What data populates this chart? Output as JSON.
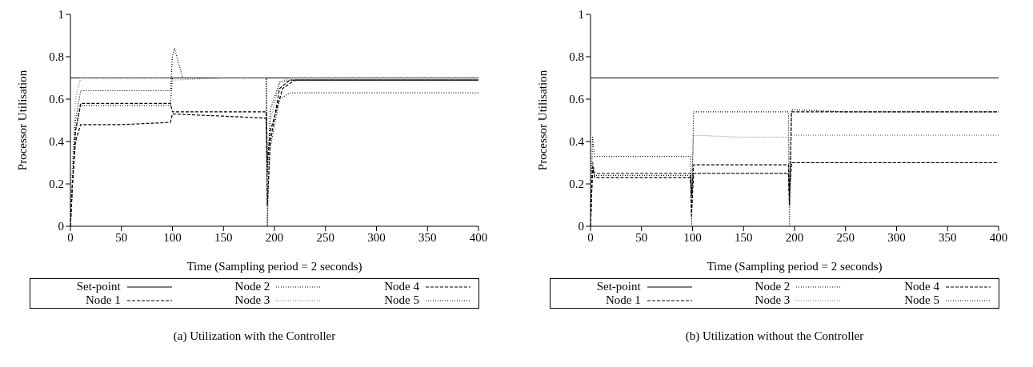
{
  "chart_data": [
    {
      "type": "line",
      "xlabel": "Time (Sampling period = 2 seconds)",
      "ylabel": "Processor Utilisation",
      "xlim": [
        0,
        400
      ],
      "xticks": [
        0,
        50,
        100,
        150,
        200,
        250,
        300,
        350,
        400
      ],
      "ylim": [
        0,
        1
      ],
      "yticks": [
        0,
        0.2,
        0.4,
        0.6,
        0.8,
        1
      ],
      "legend": "bottom",
      "annotations": [
        "(a) Utilization with the Controller"
      ],
      "series": [
        {
          "name": "Set-point",
          "color": "#000000",
          "line_style": "solid",
          "x": [
            0,
            400
          ],
          "values": [
            0.7,
            0.7
          ]
        },
        {
          "name": "Node 1",
          "color": "#000000",
          "line_style": "dashed",
          "x": [
            0,
            2,
            5,
            10,
            50,
            98,
            100,
            150,
            192,
            193,
            196,
            205,
            215,
            300,
            400
          ],
          "values": [
            0,
            0.2,
            0.4,
            0.48,
            0.48,
            0.49,
            0.53,
            0.52,
            0.51,
            0.1,
            0.4,
            0.65,
            0.69,
            0.69,
            0.69
          ]
        },
        {
          "name": "Node 2",
          "color": "#000000",
          "line_style": "dotted",
          "x": [
            0,
            2,
            5,
            10,
            50,
            98,
            100,
            102,
            110,
            150,
            192,
            193,
            195,
            205,
            215,
            300,
            400
          ],
          "values": [
            0,
            0.25,
            0.5,
            0.64,
            0.64,
            0.64,
            0.8,
            0.84,
            0.7,
            0.7,
            0.7,
            0,
            0.35,
            0.6,
            0.63,
            0.63,
            0.63
          ]
        },
        {
          "name": "Node 3",
          "color": "#777777",
          "line_style": "dotted",
          "x": [
            0,
            2,
            5,
            10,
            50,
            98,
            100,
            150,
            192,
            193,
            196,
            205,
            215,
            300,
            400
          ],
          "values": [
            0,
            0.3,
            0.6,
            0.7,
            0.7,
            0.7,
            0.69,
            0.7,
            0.7,
            0.2,
            0.5,
            0.68,
            0.7,
            0.7,
            0.7
          ]
        },
        {
          "name": "Node 4",
          "color": "#000000",
          "line_style": "dashed",
          "x": [
            0,
            2,
            5,
            10,
            50,
            98,
            100,
            150,
            192,
            193,
            196,
            208,
            220,
            300,
            400
          ],
          "values": [
            0,
            0.2,
            0.45,
            0.58,
            0.58,
            0.58,
            0.54,
            0.54,
            0.54,
            0.3,
            0.45,
            0.65,
            0.69,
            0.69,
            0.69
          ]
        },
        {
          "name": "Node 5",
          "color": "#000000",
          "line_style": "dotted",
          "x": [
            0,
            2,
            5,
            10,
            50,
            98,
            100,
            150,
            192,
            193,
            196,
            205,
            215,
            300,
            400
          ],
          "values": [
            0,
            0.2,
            0.45,
            0.57,
            0.57,
            0.57,
            0.7,
            0.7,
            0.7,
            0.25,
            0.55,
            0.68,
            0.69,
            0.69,
            0.69
          ]
        }
      ]
    },
    {
      "type": "line",
      "xlabel": "Time (Sampling period = 2 seconds)",
      "ylabel": "Processor Utilisation",
      "xlim": [
        0,
        400
      ],
      "xticks": [
        0,
        50,
        100,
        150,
        200,
        250,
        300,
        350,
        400
      ],
      "ylim": [
        0,
        1
      ],
      "yticks": [
        0,
        0.2,
        0.4,
        0.6,
        0.8,
        1
      ],
      "legend": "bottom",
      "annotations": [
        "(b) Utilization without the Controller"
      ],
      "series": [
        {
          "name": "Set-point",
          "color": "#000000",
          "line_style": "solid",
          "x": [
            0,
            400
          ],
          "values": [
            0.7,
            0.7
          ]
        },
        {
          "name": "Node 1",
          "color": "#000000",
          "line_style": "dashed",
          "x": [
            0,
            2,
            4,
            50,
            98,
            99,
            101,
            150,
            194,
            195,
            197,
            250,
            400
          ],
          "values": [
            0,
            0.3,
            0.25,
            0.25,
            0.25,
            0.05,
            0.25,
            0.25,
            0.25,
            0.1,
            0.54,
            0.54,
            0.54
          ]
        },
        {
          "name": "Node 2",
          "color": "#000000",
          "line_style": "dotted",
          "x": [
            0,
            2,
            4,
            50,
            98,
            99,
            101,
            150,
            194,
            195,
            197,
            250,
            400
          ],
          "values": [
            0,
            0.42,
            0.33,
            0.33,
            0.33,
            0,
            0.54,
            0.54,
            0.54,
            0,
            0.55,
            0.54,
            0.54
          ]
        },
        {
          "name": "Node 3",
          "color": "#777777",
          "line_style": "dotted",
          "x": [
            0,
            2,
            4,
            50,
            98,
            99,
            101,
            150,
            194,
            195,
            197,
            250,
            400
          ],
          "values": [
            0,
            0.3,
            0.25,
            0.25,
            0.25,
            0.2,
            0.43,
            0.42,
            0.42,
            0.2,
            0.43,
            0.43,
            0.43
          ]
        },
        {
          "name": "Node 4",
          "color": "#000000",
          "line_style": "dashed",
          "x": [
            0,
            2,
            4,
            50,
            98,
            99,
            101,
            150,
            194,
            195,
            197,
            250,
            400
          ],
          "values": [
            0,
            0.28,
            0.23,
            0.23,
            0.23,
            0.15,
            0.29,
            0.29,
            0.29,
            0.15,
            0.3,
            0.3,
            0.3
          ]
        },
        {
          "name": "Node 5",
          "color": "#000000",
          "line_style": "dotted",
          "x": [
            0,
            2,
            4,
            50,
            98,
            99,
            101,
            150,
            194,
            195,
            197,
            250,
            400
          ],
          "values": [
            0,
            0.28,
            0.24,
            0.24,
            0.24,
            0.15,
            0.25,
            0.25,
            0.25,
            0.15,
            0.3,
            0.3,
            0.3
          ]
        }
      ]
    }
  ]
}
